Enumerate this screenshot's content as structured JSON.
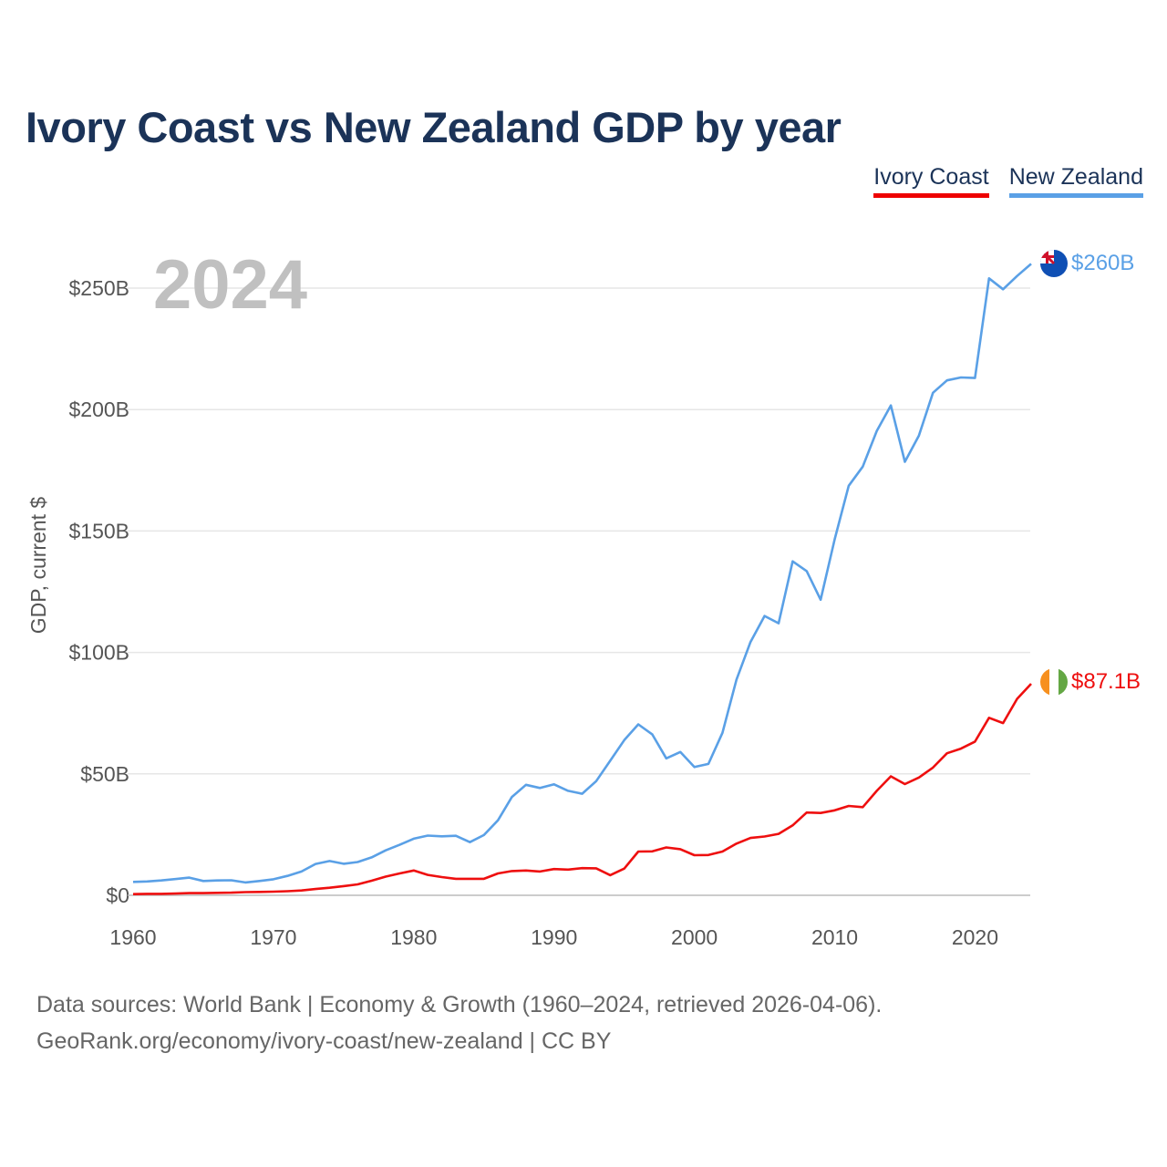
{
  "title": "Ivory Coast vs New Zealand GDP by year",
  "legend": {
    "ivory_coast": "Ivory Coast",
    "new_zealand": "New Zealand"
  },
  "colors": {
    "ivory_coast": "#ee0f0f",
    "new_zealand": "#5aa0e6",
    "title": "#1b3358"
  },
  "footer": {
    "line1": "Data sources: World Bank | Economy & Growth (1960–2024, retrieved 2026-04-06).",
    "line2": "GeoRank.org/economy/ivory-coast/new-zealand | CC BY"
  },
  "chart_data": {
    "type": "line",
    "title": "Ivory Coast vs New Zealand GDP by year",
    "year_label": "2024",
    "ylabel": "GDP, current $",
    "xlim": [
      1960,
      2024
    ],
    "ylim": [
      0,
      260
    ],
    "y_unit": "billion USD",
    "x_ticks": [
      1960,
      1970,
      1980,
      1990,
      2000,
      2010,
      2020
    ],
    "y_ticks": [
      {
        "value": 0,
        "label": "$0"
      },
      {
        "value": 50,
        "label": "$50B"
      },
      {
        "value": 100,
        "label": "$100B"
      },
      {
        "value": 150,
        "label": "$150B"
      },
      {
        "value": 200,
        "label": "$200B"
      },
      {
        "value": 250,
        "label": "$250B"
      }
    ],
    "x": [
      1960,
      1961,
      1962,
      1963,
      1964,
      1965,
      1966,
      1967,
      1968,
      1969,
      1970,
      1971,
      1972,
      1973,
      1974,
      1975,
      1976,
      1977,
      1978,
      1979,
      1980,
      1981,
      1982,
      1983,
      1984,
      1985,
      1986,
      1987,
      1988,
      1989,
      1990,
      1991,
      1992,
      1993,
      1994,
      1995,
      1996,
      1997,
      1998,
      1999,
      2000,
      2001,
      2002,
      2003,
      2004,
      2005,
      2006,
      2007,
      2008,
      2009,
      2010,
      2011,
      2012,
      2013,
      2014,
      2015,
      2016,
      2017,
      2018,
      2019,
      2020,
      2021,
      2022,
      2023,
      2024
    ],
    "series": [
      {
        "name": "New Zealand",
        "end_label": "$260B",
        "values": [
          5.5,
          5.7,
          6.1,
          6.7,
          7.3,
          5.9,
          6.1,
          6.2,
          5.3,
          5.9,
          6.6,
          8.0,
          9.8,
          12.9,
          14.1,
          13.0,
          13.7,
          15.6,
          18.5,
          20.8,
          23.3,
          24.6,
          24.3,
          24.5,
          21.9,
          24.8,
          30.9,
          40.5,
          45.5,
          44.2,
          45.7,
          43.0,
          41.8,
          47.0,
          55.4,
          63.9,
          70.4,
          66.2,
          56.4,
          59.0,
          52.8,
          54.1,
          66.9,
          88.8,
          104.3,
          115.0,
          112.0,
          137.5,
          133.5,
          121.7,
          146.6,
          168.6,
          176.5,
          191.2,
          201.7,
          178.5,
          189.3,
          206.9,
          212.0,
          213.2,
          213.0,
          254.0,
          249.5,
          255.0,
          260.0
        ]
      },
      {
        "name": "Ivory Coast",
        "end_label": "$87.1B",
        "values": [
          0.5,
          0.6,
          0.6,
          0.7,
          0.9,
          0.9,
          1.0,
          1.1,
          1.3,
          1.4,
          1.5,
          1.7,
          2.0,
          2.6,
          3.1,
          3.8,
          4.5,
          6.0,
          7.7,
          9.0,
          10.2,
          8.4,
          7.5,
          6.8,
          6.8,
          6.8,
          9.0,
          10.0,
          10.2,
          9.8,
          10.8,
          10.6,
          11.2,
          11.1,
          8.3,
          11.0,
          18.0,
          18.1,
          19.7,
          19.0,
          16.5,
          16.6,
          18.0,
          21.3,
          23.6,
          24.2,
          25.3,
          28.8,
          34.1,
          33.9,
          35.0,
          36.8,
          36.3,
          43.0,
          49.0,
          45.8,
          48.5,
          52.6,
          58.5,
          60.4,
          63.3,
          73.1,
          70.9,
          80.9,
          87.1
        ]
      }
    ]
  }
}
